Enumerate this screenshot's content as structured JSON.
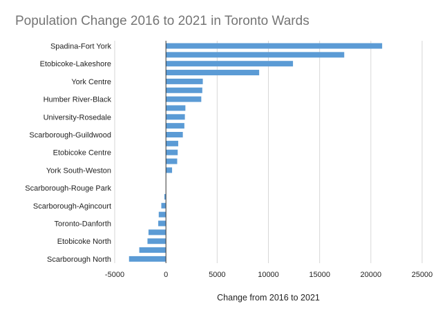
{
  "chart_data": {
    "type": "bar",
    "orientation": "horizontal",
    "title": "Population Change 2016 to 2021 in Toronto Wards",
    "xlabel": "Change from 2016 to 2021",
    "ylabel": "",
    "xlim": [
      -5000,
      25000
    ],
    "xticks": [
      -5000,
      0,
      5000,
      10000,
      15000,
      20000,
      25000
    ],
    "grid": true,
    "bar_color": "#5b9bd5",
    "categories": [
      "Spadina-Fort York",
      "",
      "Etobicoke-Lakeshore",
      "",
      "York Centre",
      "",
      "Humber River-Black",
      "",
      "University-Rosedale",
      "",
      "Scarborough-Guildwood",
      "",
      "Etobicoke Centre",
      "",
      "York South-Weston",
      "",
      "Scarborough-Rouge Park",
      "",
      "Scarborough-Agincourt",
      "",
      "Toronto-Danforth",
      "",
      "Etobicoke North",
      "",
      "Scarborough North"
    ],
    "values": [
      21100,
      17400,
      12400,
      9100,
      3600,
      3550,
      3450,
      1900,
      1850,
      1800,
      1650,
      1200,
      1150,
      1100,
      600,
      0,
      0,
      -150,
      -450,
      -700,
      -750,
      -1700,
      -1800,
      -2600,
      -3600
    ]
  }
}
